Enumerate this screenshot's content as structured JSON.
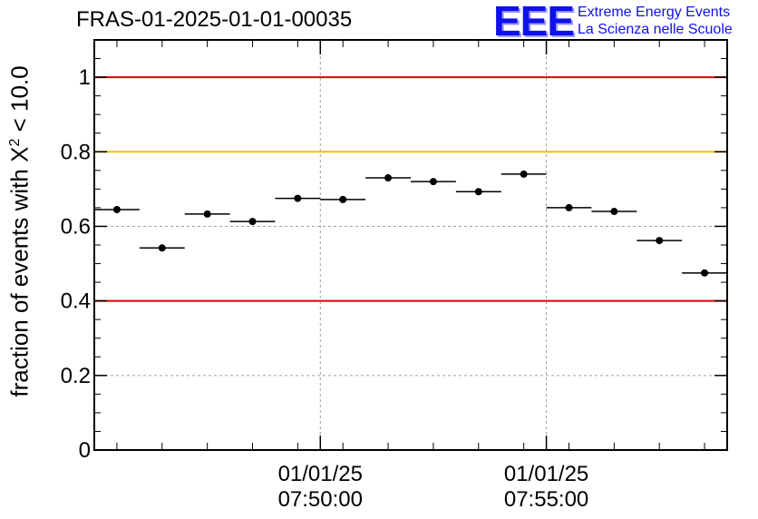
{
  "title": "FRAS-01-2025-01-01-00035",
  "logo": {
    "mark": "EEE",
    "line1": "Extreme Energy Events",
    "line2": "La Scienza nelle Scuole"
  },
  "chart_data": {
    "type": "scatter",
    "title": "FRAS-01-2025-01-01-00035",
    "ylabel_prefix": "fraction of events with ",
    "ylabel_symbol": "X",
    "ylabel_exp": "2",
    "ylabel_suffix": " < 10.0",
    "xlabel": "",
    "ylim": [
      0,
      1.1
    ],
    "x_unit": "minutes after 07:45:00",
    "xlim": [
      0,
      14
    ],
    "grid": true,
    "x_major_ticks": [
      {
        "x": 5,
        "label_date": "01/01/25",
        "label_time": "07:50:00"
      },
      {
        "x": 10,
        "label_date": "01/01/25",
        "label_time": "07:55:00"
      }
    ],
    "x_minor_ticks": [
      0.5,
      1.5,
      2.5,
      3.5,
      4.5,
      5.5,
      6.5,
      7.5,
      8.5,
      9.5,
      10.5,
      11.5,
      12.5,
      13.5
    ],
    "y_ticks": [
      0,
      0.2,
      0.4,
      0.6,
      0.8,
      1
    ],
    "y_tick_labels": [
      "0",
      "0.2",
      "0.4",
      "0.6",
      "0.8",
      "1"
    ],
    "reference_lines": [
      {
        "y": 1.0,
        "color": "#e00000"
      },
      {
        "y": 0.8,
        "color": "#f5c000"
      },
      {
        "y": 0.4,
        "color": "#e00000"
      }
    ],
    "points": [
      {
        "x": 0.5,
        "y": 0.645,
        "xerr": 0.5
      },
      {
        "x": 1.5,
        "y": 0.542,
        "xerr": 0.5
      },
      {
        "x": 2.5,
        "y": 0.633,
        "xerr": 0.5
      },
      {
        "x": 3.5,
        "y": 0.613,
        "xerr": 0.5
      },
      {
        "x": 4.5,
        "y": 0.675,
        "xerr": 0.5
      },
      {
        "x": 5.5,
        "y": 0.672,
        "xerr": 0.5
      },
      {
        "x": 6.5,
        "y": 0.73,
        "xerr": 0.5
      },
      {
        "x": 7.5,
        "y": 0.72,
        "xerr": 0.5
      },
      {
        "x": 8.5,
        "y": 0.693,
        "xerr": 0.5
      },
      {
        "x": 9.5,
        "y": 0.74,
        "xerr": 0.5
      },
      {
        "x": 10.5,
        "y": 0.65,
        "xerr": 0.5
      },
      {
        "x": 11.5,
        "y": 0.64,
        "xerr": 0.5
      },
      {
        "x": 12.5,
        "y": 0.562,
        "xerr": 0.5
      },
      {
        "x": 13.5,
        "y": 0.475,
        "xerr": 0.5
      }
    ],
    "point_color": "#000000"
  }
}
